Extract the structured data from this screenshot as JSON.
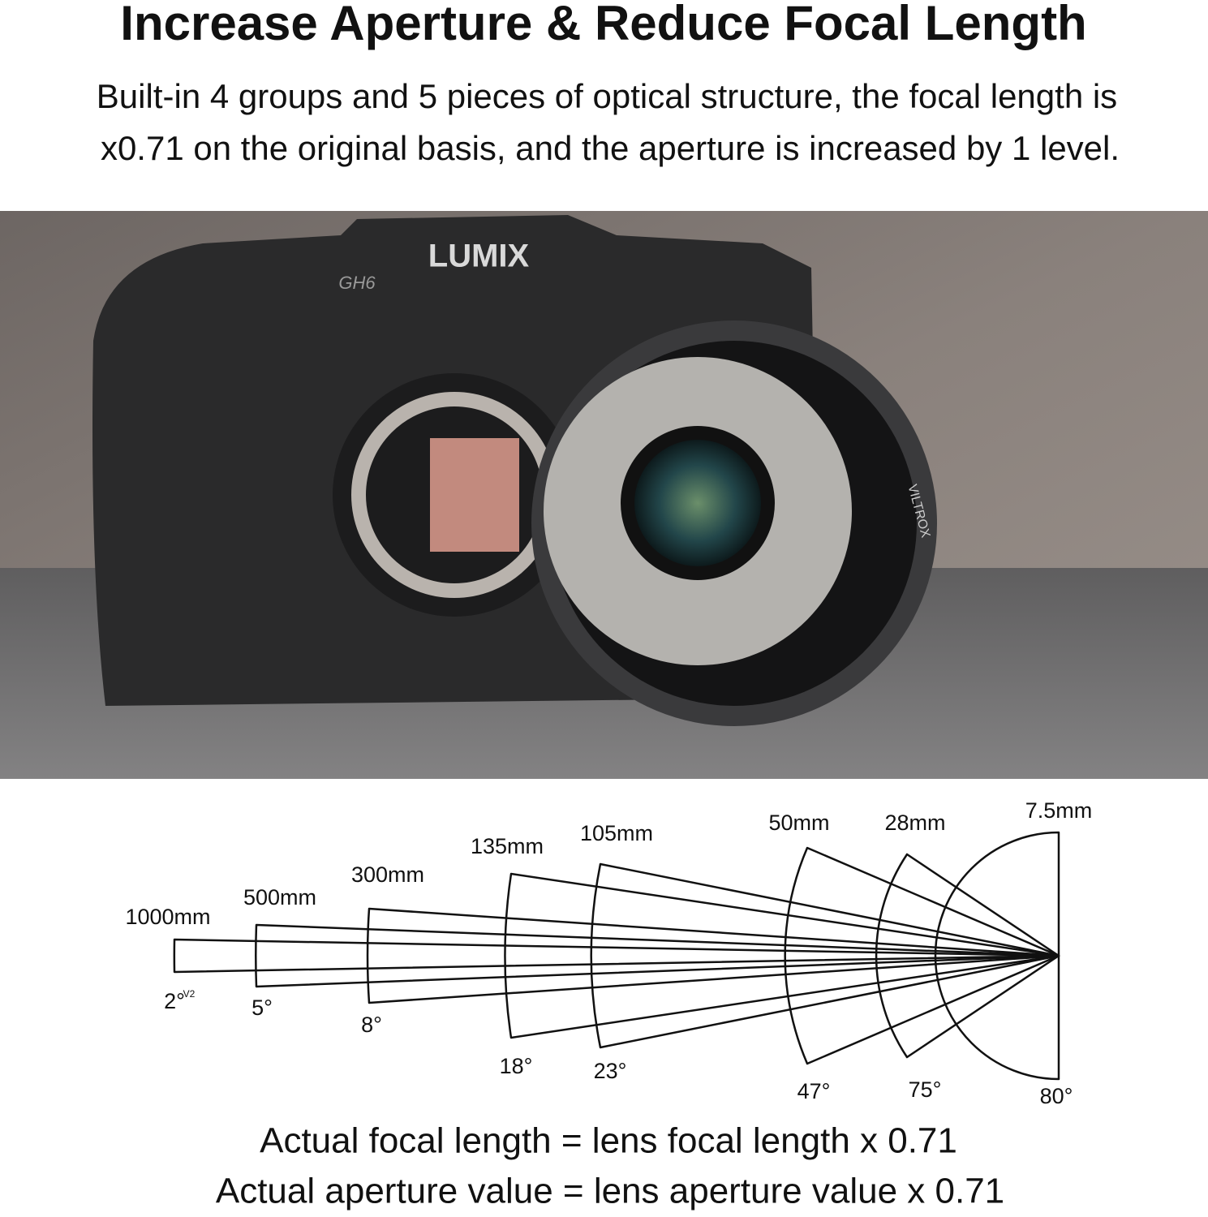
{
  "header": {
    "title": "Increase Aperture & Reduce Focal Length",
    "subtitle_lines": [
      "Built-in 4 groups and 5 pieces of optical structure, the focal length is",
      "x0.71 on the original basis, and the aperture is increased by 1 level."
    ]
  },
  "photo": {
    "camera_brand": "LUMIX",
    "camera_model": "GH6",
    "adapter_brand": "VILTROX"
  },
  "diagram": {
    "sectors": [
      {
        "focal_length": "1000mm",
        "angle": "2°"
      },
      {
        "focal_length": "500mm",
        "angle": "5°"
      },
      {
        "focal_length": "300mm",
        "angle": "8°"
      },
      {
        "focal_length": "135mm",
        "angle": "18°"
      },
      {
        "focal_length": "105mm",
        "angle": "23°"
      },
      {
        "focal_length": "50mm",
        "angle": "47°"
      },
      {
        "focal_length": "28mm",
        "angle": "75°"
      },
      {
        "focal_length": "7.5mm",
        "angle": "80°"
      }
    ],
    "version_mark": "V2"
  },
  "formulas": [
    "Actual focal length = lens focal length x 0.71",
    "Actual aperture value = lens aperture value x 0.71"
  ]
}
